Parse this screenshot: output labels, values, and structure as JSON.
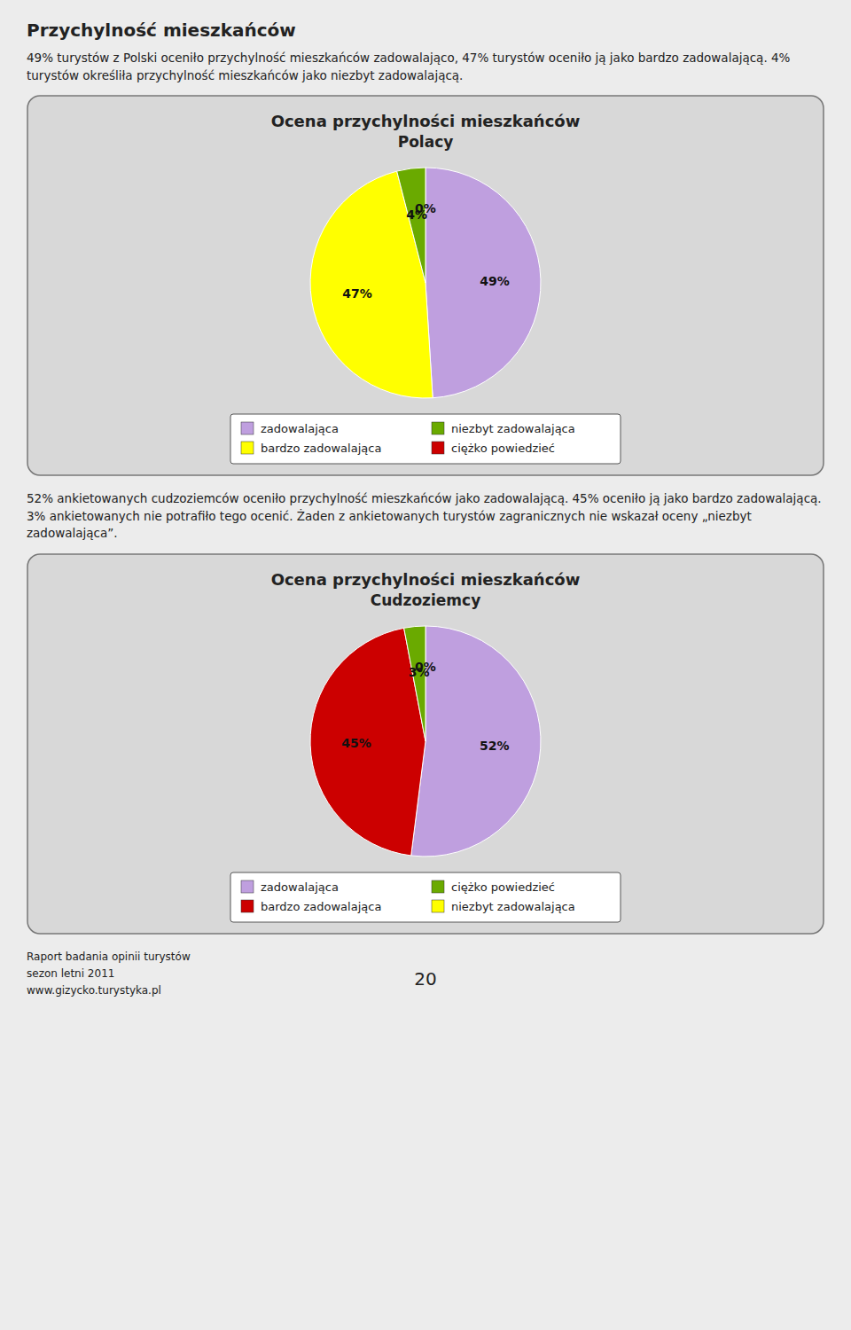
{
  "header": "Przychylność mieszkańców",
  "paragraphs": [
    "49% turystów z Polski oceniło przychylność mieszkańców zadowalająco, 47% turystów oceniło ją jako bardzo zadowalającą. 4% turystów określiła przychylność mieszkańców jako niezbyt zadowalającą.",
    "52% ankietowanych cudzoziemców oceniło przychylność mieszkańców jako zadowalającą. 45% oceniło ją jako bardzo zadowalającą. 3% ankietowanych nie potrafiło tego ocenić. Żaden z ankietowanych turystów zagranicznych nie wskazał oceny „niezbyt zadowalająca”."
  ],
  "footer_lines": [
    "Raport badania opinii turystów",
    "sezon letni 2011",
    "www.gizycko.turystyka.pl"
  ],
  "page_number": "20",
  "chart_data": [
    {
      "type": "pie",
      "title": "Ocena przychylności mieszkańców",
      "subtitle": "Polacy",
      "categories": [
        "zadowalająca",
        "bardzo zadowalająca",
        "niezbyt zadowalająca",
        "ciężko powiedzieć"
      ],
      "values": [
        49,
        47,
        4,
        0
      ],
      "value_labels": [
        "49%",
        "47%",
        "4%",
        "0%"
      ],
      "colors": [
        "#bf9fdf",
        "#ffff00",
        "#6aaa00",
        "#cc0000"
      ],
      "data_labels": true,
      "legend": "bottom"
    },
    {
      "type": "pie",
      "title": "Ocena przychylności mieszkańców",
      "subtitle": "Cudzoziemcy",
      "categories": [
        "zadowalająca",
        "bardzo zadowalająca",
        "ciężko powiedzieć",
        "niezbyt zadowalająca"
      ],
      "values": [
        52,
        45,
        3,
        0
      ],
      "value_labels": [
        "52%",
        "45%",
        "3%",
        "0%"
      ],
      "colors": [
        "#bf9fdf",
        "#cc0000",
        "#6aaa00",
        "#ffff00"
      ],
      "data_labels": true,
      "legend": "bottom"
    }
  ]
}
